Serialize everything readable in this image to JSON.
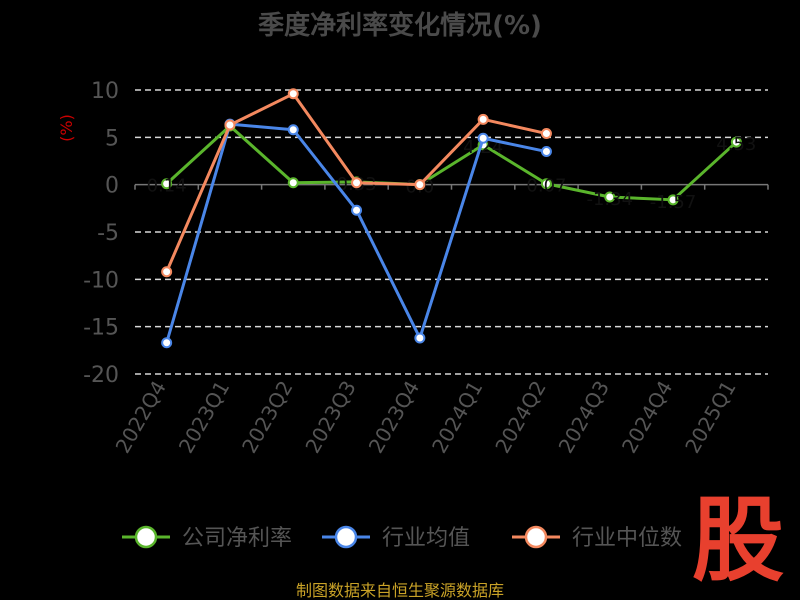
{
  "chart_data": {
    "type": "line",
    "title": "季度净利率变化情况(%)",
    "ylabel": "(%)",
    "ylim": [
      -20,
      10
    ],
    "yticks": [
      10,
      5,
      0,
      -5,
      -10,
      -15,
      -20
    ],
    "grid": true,
    "legend_position": "bottom",
    "categories": [
      "2022Q4",
      "2023Q1",
      "2023Q2",
      "2023Q3",
      "2023Q4",
      "2024Q1",
      "2024Q2",
      "2024Q3",
      "2024Q4",
      "2025Q1"
    ],
    "series": [
      {
        "name": "公司净利率",
        "color": "#5ab52c",
        "values": [
          0.1,
          6.2,
          0.2,
          0.3,
          0.0,
          4.2,
          0.1,
          -1.3,
          -1.6,
          4.5
        ],
        "point_labels": [
          "0.14",
          "",
          "",
          "0.33",
          "0.0",
          "4.24",
          "0.07",
          "-1.34",
          "-1.57",
          "4.53"
        ]
      },
      {
        "name": "行业均值",
        "color": "#4a86e8",
        "values": [
          -16.7,
          6.4,
          5.8,
          -2.7,
          -16.2,
          4.9,
          3.5,
          null,
          null,
          null
        ]
      },
      {
        "name": "行业中位数",
        "color": "#f4895f",
        "values": [
          -9.2,
          6.3,
          9.6,
          0.2,
          0.0,
          6.9,
          5.4,
          null,
          null,
          null
        ]
      }
    ]
  },
  "source": "制图数据来自恒生聚源数据库",
  "logo_text": "股"
}
